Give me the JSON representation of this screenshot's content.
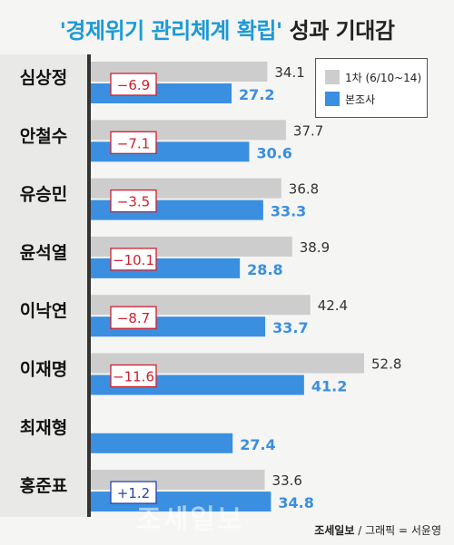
{
  "header": {
    "title_highlight": "'경제위기 관리체계 확립'",
    "title_rest": " 성과 기대감"
  },
  "legend": {
    "gray_label": "1차 (6/10~14)",
    "blue_label": "본조사"
  },
  "footer": {
    "brand": "조세일보",
    "credit": " / 그래픽 = 서윤영"
  },
  "watermark": "조세일보",
  "colors": {
    "gray": "#cdcdcd",
    "blue": "#3a8fe0",
    "neg_box": "#d01f2e",
    "pos_box": "#2d43a8",
    "title_accent": "#1c9ad6"
  },
  "chart_data": {
    "type": "bar",
    "orientation": "horizontal",
    "categories": [
      "심상정",
      "안철수",
      "유승민",
      "윤석열",
      "이낙연",
      "이재명",
      "최재형",
      "홍준표"
    ],
    "series": [
      {
        "name": "1차 (6/10~14)",
        "values": [
          34.1,
          37.7,
          36.8,
          38.9,
          42.4,
          52.8,
          null,
          33.6
        ],
        "labels": [
          "34.1",
          "37.7",
          "36.8",
          "38.9",
          "42.4",
          "52.8",
          "",
          "33.6"
        ]
      },
      {
        "name": "본조사",
        "values": [
          27.2,
          30.6,
          33.3,
          28.8,
          33.7,
          41.2,
          27.4,
          34.8
        ],
        "labels": [
          "27.2",
          "30.6",
          "33.3",
          "28.8",
          "33.7",
          "41.2",
          "27.4",
          "34.8"
        ]
      }
    ],
    "differences": [
      "−6.9",
      "−7.1",
      "−3.5",
      "−10.1",
      "−8.7",
      "−11.6",
      "",
      "+1.2"
    ],
    "difference_values": [
      -6.9,
      -7.1,
      -3.5,
      -10.1,
      -8.7,
      -11.6,
      null,
      1.2
    ],
    "legend_position": "top-right",
    "grid": false
  }
}
